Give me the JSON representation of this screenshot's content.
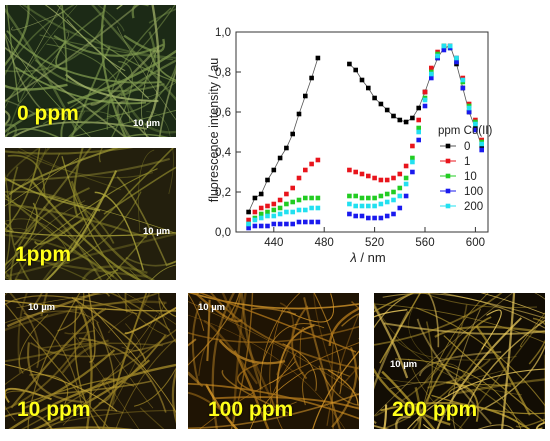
{
  "panels": [
    {
      "label": "0 ppm",
      "scale": "10 µm",
      "base": "#1c2a16",
      "fiber": "#7f9a4e",
      "fiber2": "#a4b46a"
    },
    {
      "label": "1ppm",
      "scale": "10 µm",
      "base": "#231f0d",
      "fiber": "#8f8a2c",
      "fiber2": "#b0a93c"
    },
    {
      "label": "10 ppm",
      "scale": "10 µm",
      "base": "#1d1608",
      "fiber": "#9a8226",
      "fiber2": "#c1a236"
    },
    {
      "label": "100 ppm",
      "scale": "10 µm",
      "base": "#1f1404",
      "fiber": "#a8721a",
      "fiber2": "#d99a2a"
    },
    {
      "label": "200 ppm",
      "scale": "10 µm",
      "base": "#120d04",
      "fiber": "#b59a30",
      "fiber2": "#f0d060"
    }
  ],
  "chart_data": {
    "type": "scatter",
    "xlabel": "λ / nm",
    "ylabel": "fluorescence intensity / au",
    "xlim": [
      410,
      610
    ],
    "ylim": [
      0,
      1.0
    ],
    "xticks": [
      440,
      480,
      520,
      560,
      600
    ],
    "yticks": [
      "0,0",
      "0,2",
      "0,4",
      "0,6",
      "0,8",
      "1,0"
    ],
    "legend_title": "ppm Cu(II)",
    "legend_position": "right",
    "segments": [
      [
        420,
        475
      ],
      [
        500,
        605
      ]
    ],
    "series": [
      {
        "name": "0",
        "color": "#000000",
        "marker": "square",
        "connected": true,
        "x": [
          420,
          425,
          430,
          435,
          440,
          445,
          450,
          455,
          460,
          465,
          470,
          475,
          500,
          505,
          510,
          515,
          520,
          525,
          530,
          535,
          540,
          545,
          550,
          555,
          560,
          565,
          570,
          575,
          580,
          585,
          590,
          595,
          600,
          605
        ],
        "y": [
          0.1,
          0.17,
          0.19,
          0.26,
          0.31,
          0.37,
          0.42,
          0.49,
          0.59,
          0.68,
          0.77,
          0.87,
          0.84,
          0.81,
          0.76,
          0.72,
          0.67,
          0.64,
          0.61,
          0.58,
          0.56,
          0.55,
          0.57,
          0.62,
          0.7,
          0.79,
          0.87,
          0.92,
          0.93,
          0.84,
          0.72,
          0.6,
          0.52,
          0.43
        ]
      },
      {
        "name": "1",
        "color": "#e8141c",
        "marker": "square",
        "connected": false,
        "x": [
          420,
          425,
          430,
          435,
          440,
          445,
          450,
          455,
          460,
          465,
          470,
          475,
          500,
          505,
          510,
          515,
          520,
          525,
          530,
          535,
          540,
          545,
          550,
          555,
          560,
          565,
          570,
          575,
          580,
          585,
          590,
          595,
          600,
          605
        ],
        "y": [
          0.06,
          0.1,
          0.12,
          0.13,
          0.14,
          0.16,
          0.19,
          0.22,
          0.27,
          0.31,
          0.34,
          0.36,
          0.31,
          0.3,
          0.29,
          0.28,
          0.27,
          0.26,
          0.26,
          0.27,
          0.29,
          0.33,
          0.43,
          0.56,
          0.7,
          0.82,
          0.9,
          0.93,
          0.93,
          0.87,
          0.77,
          0.64,
          0.56,
          0.46
        ]
      },
      {
        "name": "10",
        "color": "#22cc22",
        "marker": "square",
        "connected": false,
        "x": [
          420,
          425,
          430,
          435,
          440,
          445,
          450,
          455,
          460,
          465,
          470,
          475,
          500,
          505,
          510,
          515,
          520,
          525,
          530,
          535,
          540,
          545,
          550,
          555,
          560,
          565,
          570,
          575,
          580,
          585,
          590,
          595,
          600,
          605
        ],
        "y": [
          0.04,
          0.07,
          0.09,
          0.1,
          0.11,
          0.12,
          0.14,
          0.15,
          0.16,
          0.17,
          0.17,
          0.17,
          0.18,
          0.18,
          0.17,
          0.17,
          0.17,
          0.18,
          0.19,
          0.2,
          0.22,
          0.27,
          0.37,
          0.52,
          0.67,
          0.8,
          0.89,
          0.93,
          0.92,
          0.86,
          0.75,
          0.63,
          0.55,
          0.45
        ]
      },
      {
        "name": "100",
        "color": "#1a1aee",
        "marker": "square",
        "connected": false,
        "x": [
          420,
          425,
          430,
          435,
          440,
          445,
          450,
          455,
          460,
          465,
          470,
          475,
          500,
          505,
          510,
          515,
          520,
          525,
          530,
          535,
          540,
          545,
          550,
          555,
          560,
          565,
          570,
          575,
          580,
          585,
          590,
          595,
          600,
          605
        ],
        "y": [
          0.02,
          0.03,
          0.03,
          0.03,
          0.04,
          0.04,
          0.04,
          0.04,
          0.05,
          0.05,
          0.05,
          0.05,
          0.09,
          0.08,
          0.08,
          0.07,
          0.07,
          0.07,
          0.08,
          0.09,
          0.12,
          0.18,
          0.3,
          0.46,
          0.63,
          0.77,
          0.87,
          0.91,
          0.92,
          0.85,
          0.72,
          0.6,
          0.51,
          0.41
        ]
      },
      {
        "name": "200",
        "color": "#22e0f0",
        "marker": "square",
        "connected": false,
        "x": [
          420,
          425,
          430,
          435,
          440,
          445,
          450,
          455,
          460,
          465,
          470,
          475,
          500,
          505,
          510,
          515,
          520,
          525,
          530,
          535,
          540,
          545,
          550,
          555,
          560,
          565,
          570,
          575,
          580,
          585,
          590,
          595,
          600,
          605
        ],
        "y": [
          0.04,
          0.06,
          0.07,
          0.08,
          0.08,
          0.09,
          0.1,
          0.1,
          0.11,
          0.11,
          0.12,
          0.12,
          0.14,
          0.13,
          0.13,
          0.13,
          0.13,
          0.14,
          0.15,
          0.16,
          0.18,
          0.24,
          0.35,
          0.5,
          0.66,
          0.79,
          0.88,
          0.93,
          0.93,
          0.87,
          0.76,
          0.62,
          0.54,
          0.44
        ]
      }
    ]
  }
}
